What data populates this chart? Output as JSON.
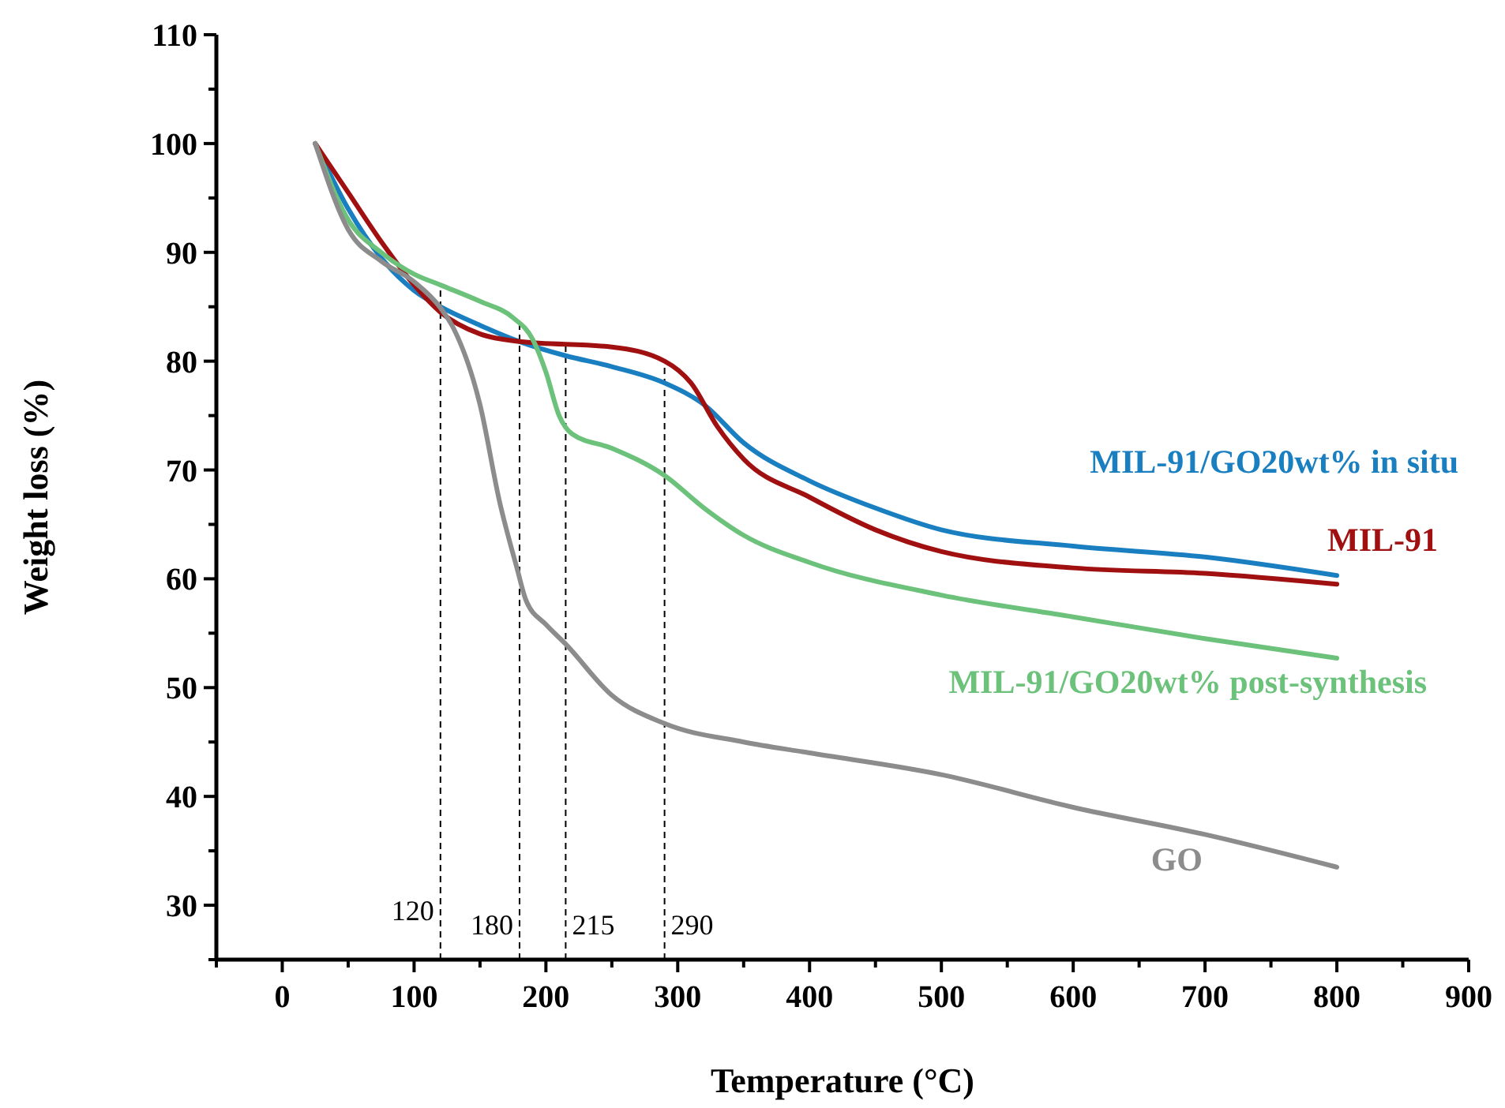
{
  "chart_data": {
    "type": "line",
    "xlabel": "Temperature (°C)",
    "ylabel": "Weight loss (%)",
    "xlim": [
      -50,
      900
    ],
    "ylim": [
      25,
      110
    ],
    "xticks": [
      {
        "value": -50,
        "label": null
      },
      0,
      {
        "value": 50,
        "label": null
      },
      100,
      {
        "value": 150,
        "label": null
      },
      200,
      {
        "value": 250,
        "label": null
      },
      300,
      {
        "value": 350,
        "label": null
      },
      400,
      {
        "value": 450,
        "label": null
      },
      500,
      {
        "value": 550,
        "label": null
      },
      600,
      {
        "value": 650,
        "label": null
      },
      700,
      {
        "value": 750,
        "label": null
      },
      800,
      {
        "value": 850,
        "label": null
      },
      900
    ],
    "yticks": [
      {
        "value": 25,
        "label": null
      },
      30,
      {
        "value": 35,
        "label": null
      },
      40,
      {
        "value": 45,
        "label": null
      },
      50,
      {
        "value": 55,
        "label": null
      },
      60,
      {
        "value": 65,
        "label": null
      },
      70,
      {
        "value": 75,
        "label": null
      },
      80,
      {
        "value": 85,
        "label": null
      },
      90,
      {
        "value": 95,
        "label": null
      },
      100,
      {
        "value": 105,
        "label": null
      },
      110
    ],
    "grid": false,
    "marker": "none",
    "line_style": "solid",
    "series": [
      {
        "name": "MIL-91/GO20wt% in situ",
        "color": "#1a7fc1",
        "x": [
          25,
          50,
          75,
          100,
          120,
          150,
          180,
          215,
          250,
          290,
          320,
          350,
          400,
          450,
          500,
          600,
          700,
          800
        ],
        "values": [
          100,
          94,
          89.5,
          86.5,
          85,
          83.3,
          81.8,
          80.5,
          79.5,
          78,
          76,
          72.5,
          69,
          66.5,
          64.5,
          63,
          62,
          60.3
        ]
      },
      {
        "name": "MIL-91",
        "color": "#a01010",
        "x": [
          25,
          50,
          75,
          100,
          120,
          150,
          180,
          250,
          290,
          310,
          330,
          350,
          400,
          450,
          500,
          600,
          700,
          800
        ],
        "values": [
          100,
          95.5,
          91,
          87,
          84.5,
          82.5,
          81.8,
          81.3,
          80,
          78,
          74,
          71,
          67.5,
          64.5,
          62.5,
          61,
          60.5,
          59.5
        ]
      },
      {
        "name": "MIL-91/GO20wt% post-synthesis",
        "color": "#6cc27a",
        "x": [
          25,
          50,
          75,
          100,
          120,
          150,
          175,
          190,
          200,
          210,
          220,
          250,
          290,
          320,
          350,
          400,
          500,
          600,
          700,
          800
        ],
        "values": [
          100,
          93,
          90,
          88,
          87,
          85.5,
          84,
          82,
          79,
          75,
          73.3,
          72,
          69.5,
          66.5,
          64,
          61.5,
          58.5,
          56.5,
          54.5,
          52.7
        ]
      },
      {
        "name": "GO",
        "color": "#8c8c8c",
        "x": [
          25,
          50,
          75,
          100,
          120,
          130,
          150,
          165,
          178,
          185,
          200,
          215,
          250,
          290,
          350,
          400,
          500,
          600,
          700,
          800
        ],
        "values": [
          100,
          92.1,
          89.2,
          87.3,
          84.9,
          83,
          76,
          67,
          61,
          58,
          55.8,
          54,
          49.3,
          46.7,
          45,
          44,
          42,
          39,
          36.5,
          33.5
        ]
      }
    ],
    "ref_lines": [
      {
        "axis": "x",
        "value": 120,
        "label": "120",
        "color": "#000000",
        "line_style": "dashed"
      },
      {
        "axis": "x",
        "value": 180,
        "label": "180",
        "color": "#000000",
        "line_style": "dashed"
      },
      {
        "axis": "x",
        "value": 215,
        "label": "215",
        "color": "#000000",
        "line_style": "dashed"
      },
      {
        "axis": "x",
        "value": 290,
        "label": "290",
        "color": "#000000",
        "line_style": "dashed"
      }
    ]
  }
}
